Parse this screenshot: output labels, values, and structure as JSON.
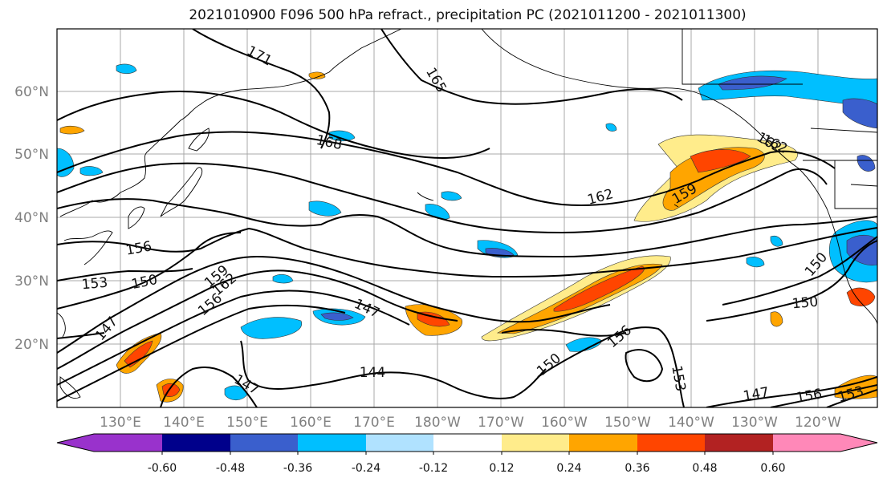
{
  "title": "2021010900 F096 500 hPa refract., precipitation PC (2021011200 - 2021011300)",
  "map": {
    "lat_ticks": [
      "60°N",
      "50°N",
      "40°N",
      "30°N",
      "20°N"
    ],
    "lon_ticks": [
      "130°E",
      "140°E",
      "150°E",
      "160°E",
      "170°E",
      "180°W",
      "170°W",
      "160°W",
      "150°W",
      "140°W",
      "130°W",
      "120°W"
    ],
    "contour_labels": [
      "171",
      "165",
      "168",
      "162",
      "159",
      "162",
      "156",
      "153",
      "150",
      "159",
      "162",
      "156",
      "147",
      "147",
      "144",
      "147",
      "150",
      "156",
      "153",
      "147",
      "150",
      "156",
      "153",
      "150",
      "162"
    ]
  },
  "colorbar": {
    "colors": [
      "#9932cc",
      "#00008b",
      "#3a5fcd",
      "#00bfff",
      "#b0e2ff",
      "#ffffff",
      "#ffec8b",
      "#ffa500",
      "#ff4500",
      "#b22222",
      "#ff88b8"
    ],
    "tick_labels": [
      "-0.60",
      "-0.48",
      "-0.36",
      "-0.24",
      "-0.12",
      "0.12",
      "0.24",
      "0.36",
      "0.48",
      "0.60"
    ]
  }
}
